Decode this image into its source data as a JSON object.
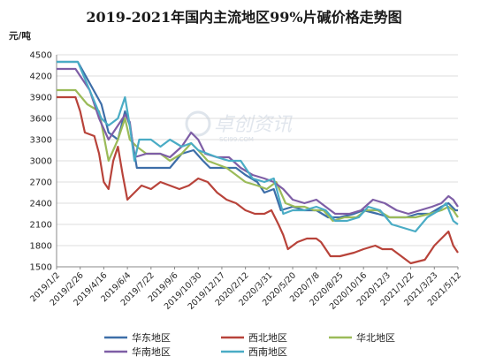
{
  "chart_data": {
    "type": "line",
    "title": "2019-2021年国内主流地区99%片碱价格走势图",
    "ylabel": "元/吨",
    "xlabel": "",
    "ylim": [
      1500,
      4500
    ],
    "yticks": [
      1500,
      1800,
      2100,
      2400,
      2700,
      3000,
      3300,
      3600,
      3900,
      4200,
      4500
    ],
    "grid": true,
    "legend_position": "bottom",
    "x_tick_labels": [
      "2019/1/2",
      "2019/2/26",
      "2019/4/16",
      "2019/6/4",
      "2019/7/22",
      "2019/9/6",
      "2019/10/30",
      "2019/12/17",
      "2020/2/12",
      "2020/3/31",
      "2020/5/20",
      "2020/7/8",
      "2020/8/25",
      "2020/10/16",
      "2020/12/3",
      "2021/1/22",
      "2021/3/23",
      "2021/5/12"
    ],
    "x_index_range": [
      0,
      17
    ],
    "series": [
      {
        "name": "华东地区",
        "color": "#3d6ea8",
        "points": [
          [
            0,
            4400
          ],
          [
            0.9,
            4400
          ],
          [
            1.4,
            4100
          ],
          [
            1.9,
            3800
          ],
          [
            2.2,
            3400
          ],
          [
            2.6,
            3300
          ],
          [
            2.9,
            3700
          ],
          [
            3.1,
            3500
          ],
          [
            3.4,
            2900
          ],
          [
            4.8,
            2900
          ],
          [
            5.3,
            3100
          ],
          [
            5.8,
            3150
          ],
          [
            6.2,
            3000
          ],
          [
            6.5,
            2900
          ],
          [
            7.6,
            2900
          ],
          [
            8.0,
            2800
          ],
          [
            8.5,
            2700
          ],
          [
            8.8,
            2550
          ],
          [
            9.2,
            2600
          ],
          [
            9.5,
            2300
          ],
          [
            10.0,
            2350
          ],
          [
            10.5,
            2300
          ],
          [
            11.0,
            2300
          ],
          [
            11.5,
            2200
          ],
          [
            12.0,
            2200
          ],
          [
            12.6,
            2250
          ],
          [
            13.0,
            2300
          ],
          [
            13.6,
            2250
          ],
          [
            14.1,
            2200
          ],
          [
            14.8,
            2200
          ],
          [
            15.3,
            2250
          ],
          [
            15.8,
            2250
          ],
          [
            16.3,
            2350
          ],
          [
            16.6,
            2400
          ],
          [
            16.9,
            2300
          ],
          [
            17.0,
            2300
          ]
        ]
      },
      {
        "name": "西北地区",
        "color": "#b8433a",
        "points": [
          [
            0,
            3900
          ],
          [
            0.8,
            3900
          ],
          [
            1.0,
            3700
          ],
          [
            1.2,
            3400
          ],
          [
            1.6,
            3350
          ],
          [
            1.8,
            3100
          ],
          [
            2.0,
            2700
          ],
          [
            2.2,
            2600
          ],
          [
            2.4,
            3000
          ],
          [
            2.6,
            3200
          ],
          [
            2.8,
            2800
          ],
          [
            3.0,
            2450
          ],
          [
            3.3,
            2550
          ],
          [
            3.6,
            2650
          ],
          [
            4.0,
            2600
          ],
          [
            4.4,
            2700
          ],
          [
            4.8,
            2650
          ],
          [
            5.2,
            2600
          ],
          [
            5.6,
            2650
          ],
          [
            6.0,
            2750
          ],
          [
            6.4,
            2700
          ],
          [
            6.8,
            2550
          ],
          [
            7.2,
            2450
          ],
          [
            7.6,
            2400
          ],
          [
            8.0,
            2300
          ],
          [
            8.4,
            2250
          ],
          [
            8.8,
            2250
          ],
          [
            9.1,
            2300
          ],
          [
            9.4,
            2100
          ],
          [
            9.6,
            1950
          ],
          [
            9.8,
            1750
          ],
          [
            10.2,
            1850
          ],
          [
            10.6,
            1900
          ],
          [
            11.0,
            1900
          ],
          [
            11.2,
            1850
          ],
          [
            11.6,
            1650
          ],
          [
            12.0,
            1650
          ],
          [
            12.6,
            1700
          ],
          [
            13.0,
            1750
          ],
          [
            13.5,
            1800
          ],
          [
            13.8,
            1750
          ],
          [
            14.2,
            1750
          ],
          [
            14.6,
            1650
          ],
          [
            15.0,
            1550
          ],
          [
            15.6,
            1600
          ],
          [
            16.0,
            1800
          ],
          [
            16.3,
            1900
          ],
          [
            16.6,
            2000
          ],
          [
            16.8,
            1800
          ],
          [
            17.0,
            1700
          ]
        ]
      },
      {
        "name": "华北地区",
        "color": "#9bbb59",
        "points": [
          [
            0,
            4000
          ],
          [
            0.8,
            4000
          ],
          [
            1.3,
            3800
          ],
          [
            1.8,
            3700
          ],
          [
            2.2,
            3000
          ],
          [
            2.6,
            3300
          ],
          [
            2.9,
            3600
          ],
          [
            3.1,
            3300
          ],
          [
            3.4,
            3200
          ],
          [
            3.8,
            3100
          ],
          [
            4.4,
            3100
          ],
          [
            4.8,
            3000
          ],
          [
            5.3,
            3100
          ],
          [
            5.7,
            3250
          ],
          [
            6.0,
            3150
          ],
          [
            6.4,
            3000
          ],
          [
            6.8,
            2950
          ],
          [
            7.2,
            2900
          ],
          [
            7.6,
            2800
          ],
          [
            8.0,
            2700
          ],
          [
            8.5,
            2650
          ],
          [
            8.9,
            2600
          ],
          [
            9.3,
            2700
          ],
          [
            9.7,
            2400
          ],
          [
            10.1,
            2350
          ],
          [
            10.5,
            2350
          ],
          [
            10.9,
            2300
          ],
          [
            11.3,
            2300
          ],
          [
            11.7,
            2150
          ],
          [
            12.2,
            2200
          ],
          [
            12.7,
            2200
          ],
          [
            13.1,
            2300
          ],
          [
            13.6,
            2300
          ],
          [
            14.1,
            2200
          ],
          [
            14.7,
            2200
          ],
          [
            15.2,
            2200
          ],
          [
            15.8,
            2250
          ],
          [
            16.3,
            2300
          ],
          [
            16.6,
            2350
          ],
          [
            16.8,
            2300
          ],
          [
            17.0,
            2200
          ]
        ]
      },
      {
        "name": "华南地区",
        "color": "#7e5ea6",
        "points": [
          [
            0,
            4300
          ],
          [
            0.8,
            4300
          ],
          [
            1.4,
            4000
          ],
          [
            1.8,
            3600
          ],
          [
            2.2,
            3300
          ],
          [
            2.6,
            3500
          ],
          [
            2.9,
            3650
          ],
          [
            3.1,
            3550
          ],
          [
            3.3,
            3050
          ],
          [
            3.8,
            3100
          ],
          [
            4.4,
            3100
          ],
          [
            4.8,
            3050
          ],
          [
            5.3,
            3200
          ],
          [
            5.7,
            3400
          ],
          [
            6.0,
            3300
          ],
          [
            6.3,
            3100
          ],
          [
            6.8,
            3050
          ],
          [
            7.3,
            3050
          ],
          [
            7.8,
            2900
          ],
          [
            8.3,
            2800
          ],
          [
            8.8,
            2750
          ],
          [
            9.2,
            2700
          ],
          [
            9.6,
            2600
          ],
          [
            10.0,
            2450
          ],
          [
            10.5,
            2400
          ],
          [
            11.0,
            2450
          ],
          [
            11.4,
            2350
          ],
          [
            11.8,
            2250
          ],
          [
            12.4,
            2250
          ],
          [
            12.9,
            2300
          ],
          [
            13.4,
            2450
          ],
          [
            13.9,
            2400
          ],
          [
            14.4,
            2300
          ],
          [
            14.9,
            2250
          ],
          [
            15.4,
            2300
          ],
          [
            15.9,
            2350
          ],
          [
            16.3,
            2400
          ],
          [
            16.6,
            2500
          ],
          [
            16.8,
            2450
          ],
          [
            17.0,
            2350
          ]
        ]
      },
      {
        "name": "西南地区",
        "color": "#4aacc5",
        "points": [
          [
            0,
            4400
          ],
          [
            0.9,
            4400
          ],
          [
            1.4,
            4000
          ],
          [
            1.9,
            3600
          ],
          [
            2.2,
            3500
          ],
          [
            2.6,
            3600
          ],
          [
            2.9,
            3900
          ],
          [
            3.1,
            3500
          ],
          [
            3.3,
            3000
          ],
          [
            3.5,
            3300
          ],
          [
            4.0,
            3300
          ],
          [
            4.4,
            3200
          ],
          [
            4.8,
            3300
          ],
          [
            5.3,
            3200
          ],
          [
            5.7,
            3250
          ],
          [
            6.0,
            3150
          ],
          [
            6.4,
            3100
          ],
          [
            6.8,
            3050
          ],
          [
            7.3,
            3000
          ],
          [
            7.8,
            3000
          ],
          [
            8.3,
            2750
          ],
          [
            8.8,
            2700
          ],
          [
            9.2,
            2750
          ],
          [
            9.6,
            2250
          ],
          [
            10.0,
            2300
          ],
          [
            10.5,
            2300
          ],
          [
            11.0,
            2350
          ],
          [
            11.4,
            2300
          ],
          [
            11.8,
            2150
          ],
          [
            12.3,
            2150
          ],
          [
            12.8,
            2200
          ],
          [
            13.2,
            2350
          ],
          [
            13.7,
            2300
          ],
          [
            14.2,
            2100
          ],
          [
            14.7,
            2050
          ],
          [
            15.2,
            2000
          ],
          [
            15.7,
            2200
          ],
          [
            16.2,
            2300
          ],
          [
            16.5,
            2400
          ],
          [
            16.8,
            2150
          ],
          [
            17.0,
            2100
          ]
        ]
      }
    ]
  },
  "watermark": {
    "text": "卓创资讯",
    "subtext": "SCI99.COM"
  }
}
